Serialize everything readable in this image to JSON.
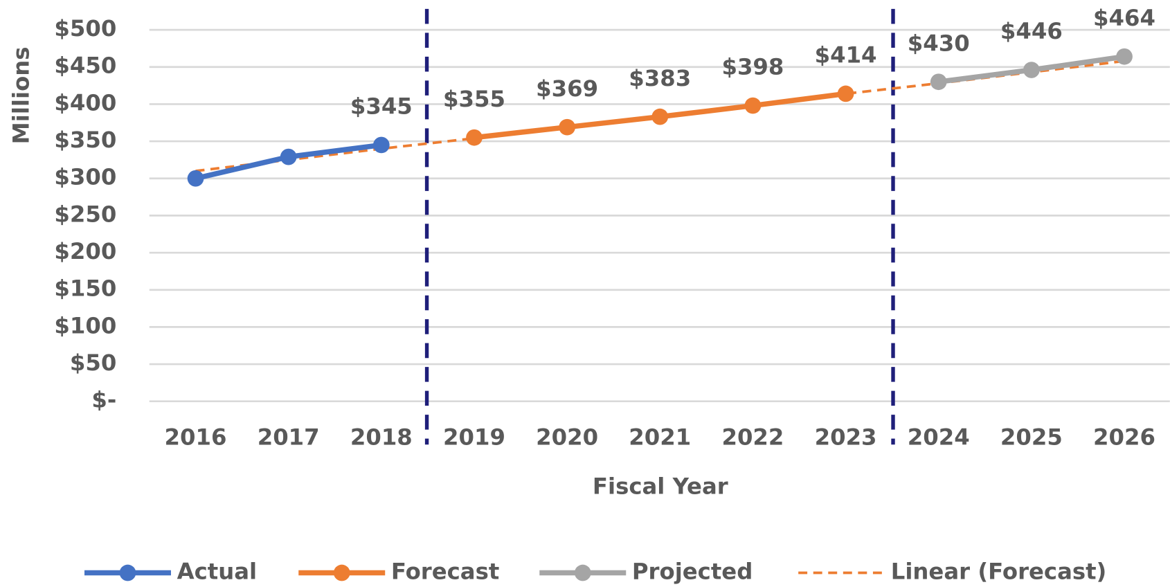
{
  "chart_data": {
    "type": "line",
    "x_label": "Fiscal Year",
    "y_label": "Millions",
    "categories": [
      "2016",
      "2017",
      "2018",
      "2019",
      "2020",
      "2021",
      "2022",
      "2023",
      "2024",
      "2025",
      "2026"
    ],
    "ylim": [
      0,
      500
    ],
    "yticks": [
      {
        "value": 0,
        "label": "$-"
      },
      {
        "value": 50,
        "label": "$50"
      },
      {
        "value": 100,
        "label": "$100"
      },
      {
        "value": 150,
        "label": "$150"
      },
      {
        "value": 200,
        "label": "$200"
      },
      {
        "value": 250,
        "label": "$250"
      },
      {
        "value": 300,
        "label": "$300"
      },
      {
        "value": 350,
        "label": "$350"
      },
      {
        "value": 400,
        "label": "$400"
      },
      {
        "value": 450,
        "label": "$450"
      },
      {
        "value": 500,
        "label": "$500"
      }
    ],
    "grid": true,
    "legend": "bottom",
    "series": [
      {
        "name": "Actual",
        "color": "#4472c4",
        "markers": true,
        "dashed": false,
        "values": [
          300,
          329,
          345,
          null,
          null,
          null,
          null,
          null,
          null,
          null,
          null
        ],
        "value_labels": [
          null,
          null,
          "$345",
          null,
          null,
          null,
          null,
          null,
          null,
          null,
          null
        ]
      },
      {
        "name": "Forecast",
        "color": "#ed7d31",
        "markers": true,
        "dashed": false,
        "values": [
          null,
          null,
          null,
          355,
          369,
          383,
          398,
          414,
          null,
          null,
          null
        ],
        "value_labels": [
          null,
          null,
          null,
          "$355",
          "$369",
          "$383",
          "$398",
          "$414",
          null,
          null,
          null
        ]
      },
      {
        "name": "Projected",
        "color": "#a5a5a5",
        "markers": true,
        "dashed": false,
        "values": [
          null,
          null,
          null,
          null,
          null,
          null,
          null,
          null,
          430,
          446,
          464
        ],
        "value_labels": [
          null,
          null,
          null,
          null,
          null,
          null,
          null,
          null,
          "$430",
          "$446",
          "$464"
        ]
      },
      {
        "name": "Linear (Forecast)",
        "color": "#ed7d31",
        "markers": false,
        "dashed": true,
        "values": [
          310,
          325,
          340,
          354,
          369,
          384,
          399,
          414,
          428,
          443,
          458
        ]
      }
    ]
  }
}
